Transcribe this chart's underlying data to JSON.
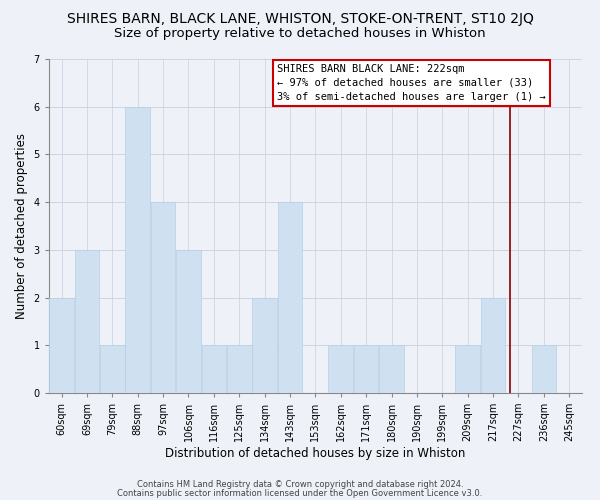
{
  "title": "SHIRES BARN, BLACK LANE, WHISTON, STOKE-ON-TRENT, ST10 2JQ",
  "subtitle": "Size of property relative to detached houses in Whiston",
  "xlabel": "Distribution of detached houses by size in Whiston",
  "ylabel": "Number of detached properties",
  "categories": [
    "60sqm",
    "69sqm",
    "79sqm",
    "88sqm",
    "97sqm",
    "106sqm",
    "116sqm",
    "125sqm",
    "134sqm",
    "143sqm",
    "153sqm",
    "162sqm",
    "171sqm",
    "180sqm",
    "190sqm",
    "199sqm",
    "209sqm",
    "217sqm",
    "227sqm",
    "236sqm",
    "245sqm"
  ],
  "values": [
    2,
    3,
    1,
    6,
    4,
    3,
    1,
    1,
    2,
    4,
    0,
    1,
    1,
    1,
    0,
    0,
    1,
    2,
    0,
    1,
    0
  ],
  "bar_color": "#cfe0f0",
  "bar_edge_color": "#b5cfe5",
  "bar_width": 0.97,
  "ylim": [
    0,
    7
  ],
  "yticks": [
    0,
    1,
    2,
    3,
    4,
    5,
    6,
    7
  ],
  "vline_x_index": 17.67,
  "vline_color": "#8b0000",
  "annotation_text_line1": "SHIRES BARN BLACK LANE: 222sqm",
  "annotation_text_line2": "← 97% of detached houses are smaller (33)",
  "annotation_text_line3": "3% of semi-detached houses are larger (1) →",
  "annotation_box_color": "#ffffff",
  "annotation_box_edge": "#cc0000",
  "footer1": "Contains HM Land Registry data © Crown copyright and database right 2024.",
  "footer2": "Contains public sector information licensed under the Open Government Licence v3.0.",
  "background_color": "#eef2f8",
  "grid_color": "#c8d0dc",
  "title_fontsize": 10,
  "subtitle_fontsize": 9.5,
  "axis_label_fontsize": 8.5,
  "tick_fontsize": 7,
  "annotation_fontsize": 7.5,
  "footer_fontsize": 6
}
